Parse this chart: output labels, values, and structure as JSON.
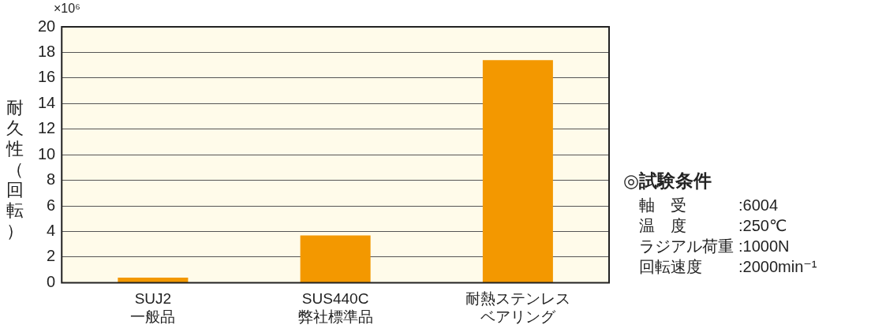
{
  "chart_data": {
    "type": "bar",
    "ylabel": "耐久性（回転）",
    "categories": [
      "SUJ2 一般品",
      "SUS440C 弊社標準品",
      "耐熱ステンレスベアリング"
    ],
    "values": [
      0.4,
      3.7,
      17.4
    ],
    "color": "#f39800",
    "ylim": [
      0,
      20
    ],
    "yticks": [
      0,
      2,
      4,
      6,
      8,
      10,
      12,
      14,
      16,
      18,
      20
    ],
    "grid": "y",
    "annotations": [
      "×10⁶",
      "◎試験条件",
      "軸　受 :6004",
      "温　度 :250℃",
      "ラジアル荷重 :1000N",
      "回転速度 :2000min⁻¹"
    ]
  }
}
